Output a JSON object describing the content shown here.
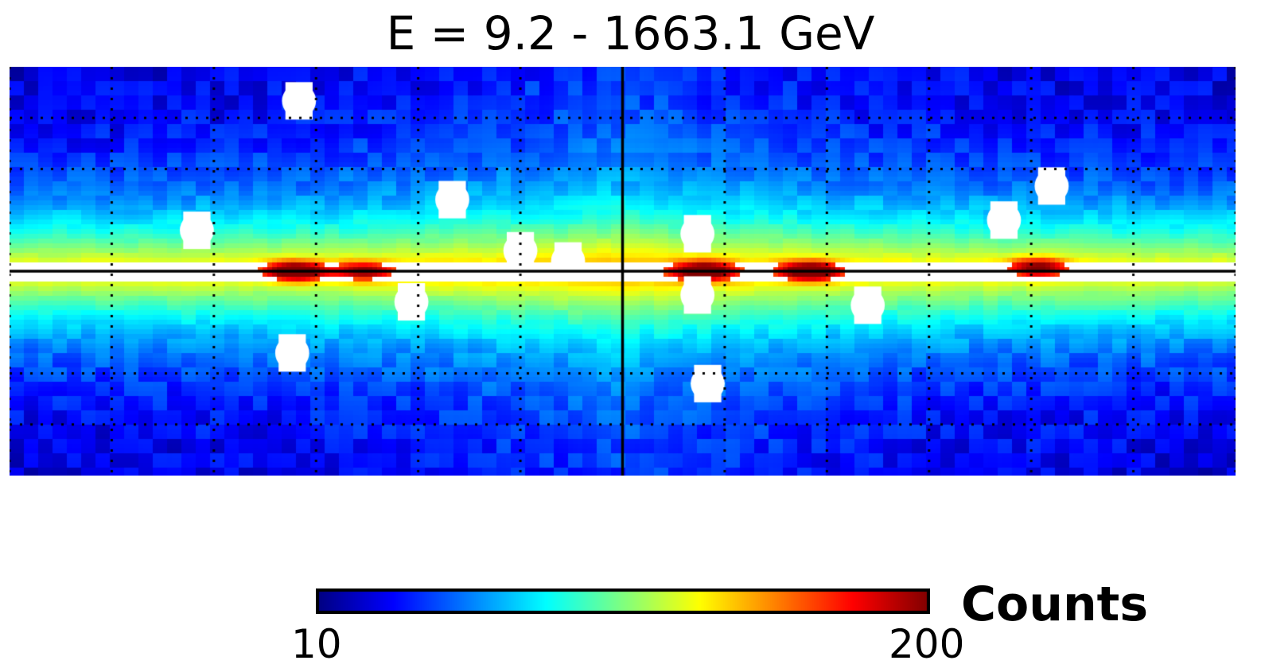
{
  "chart_data": {
    "type": "heatmap",
    "title": "E = 9.2 - 1663.1 GeV",
    "colorbar": {
      "label": "Counts",
      "min": 10,
      "max": 200,
      "min_label": "10",
      "max_label": "200",
      "colormap": "jet"
    },
    "grid": true,
    "grid_style": "dotted",
    "axis_tick_labels_shown": false,
    "colors": {
      "background_low": "#0a2bd8",
      "mask": "#ffffff",
      "frame_line": "#000000",
      "hot": "#a00000"
    },
    "masked_sources": [
      {
        "lon": 95,
        "lat": 50
      },
      {
        "lon": 50,
        "lat": 21
      },
      {
        "lon": 125,
        "lat": 12
      },
      {
        "lon": 97,
        "lat": -24
      },
      {
        "lon": 62,
        "lat": -9
      },
      {
        "lon": 30,
        "lat": 6
      },
      {
        "lon": 16,
        "lat": 3
      },
      {
        "lon": -22,
        "lat": 11
      },
      {
        "lon": -22,
        "lat": -7
      },
      {
        "lon": -72,
        "lat": -10
      },
      {
        "lon": -25,
        "lat": -33
      },
      {
        "lon": -112,
        "lat": 15
      },
      {
        "lon": -126,
        "lat": 25
      }
    ],
    "hot_spots": [
      {
        "lon": 96,
        "lat": 0,
        "peak": 200
      },
      {
        "lon": -24,
        "lat": 0,
        "peak": 190
      },
      {
        "lon": -55,
        "lat": 0,
        "peak": 200
      },
      {
        "lon": 76,
        "lat": 0,
        "peak": 120
      },
      {
        "lon": -122,
        "lat": 1,
        "peak": 140
      }
    ]
  }
}
